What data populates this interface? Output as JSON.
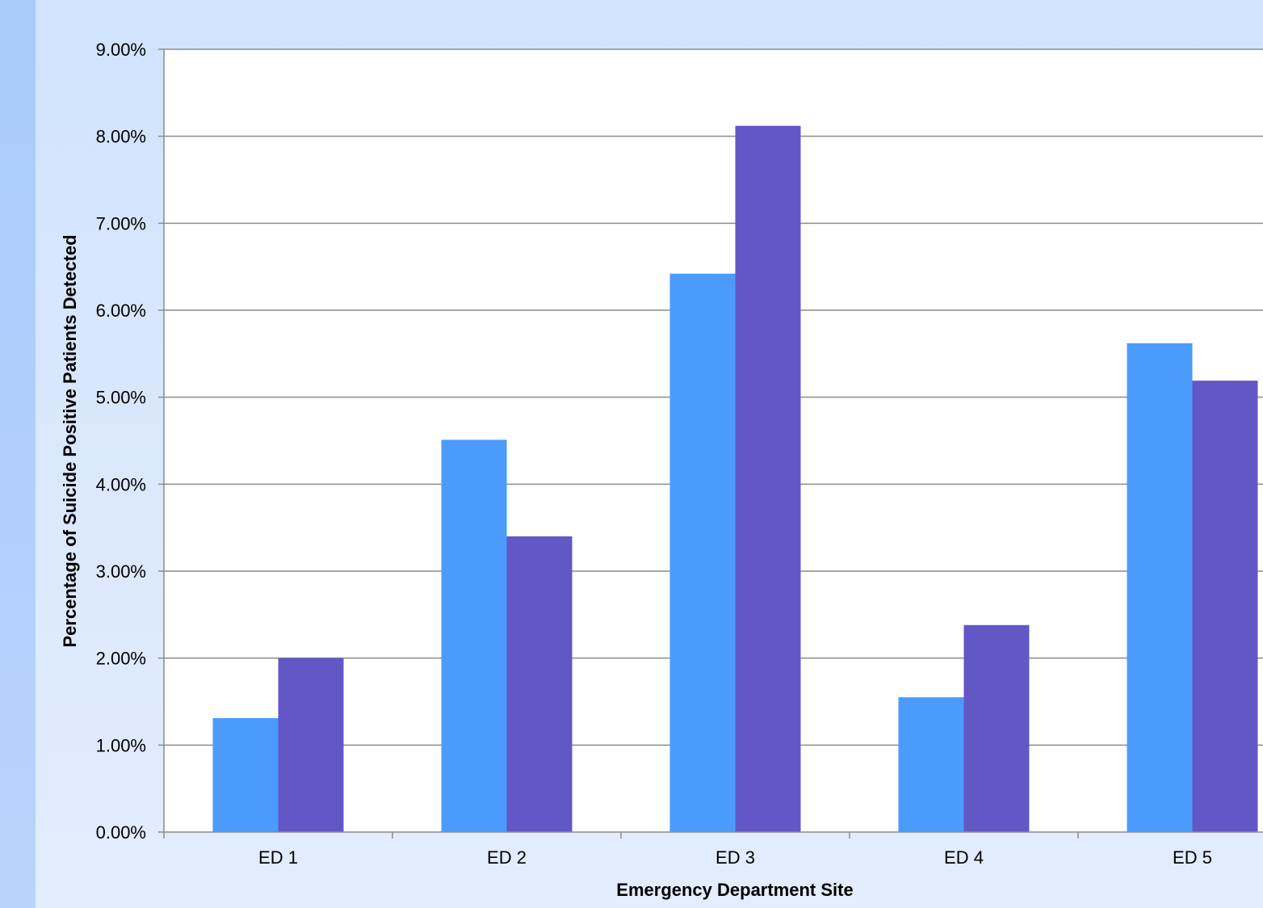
{
  "chart_data": {
    "type": "bar",
    "title": "",
    "xlabel": "Emergency Department Site",
    "ylabel": "Percentage of Suicide Positive Patients Detected",
    "categories": [
      "ED 1",
      "ED 2",
      "ED 3",
      "ED 4",
      "ED 5"
    ],
    "series": [
      {
        "values": [
          1.31,
          4.51,
          6.42,
          1.55,
          5.62
        ],
        "color": "#4b9bfd"
      },
      {
        "values": [
          2.0,
          3.4,
          8.12,
          2.38,
          5.19
        ],
        "color": "#6357c6"
      }
    ],
    "ylim": [
      0,
      9
    ],
    "y_ticks": [
      "0.00%",
      "1.00%",
      "2.00%",
      "3.00%",
      "4.00%",
      "5.00%",
      "6.00%",
      "7.00%",
      "8.00%",
      "9.00%"
    ],
    "grid": true,
    "legend": "none"
  }
}
